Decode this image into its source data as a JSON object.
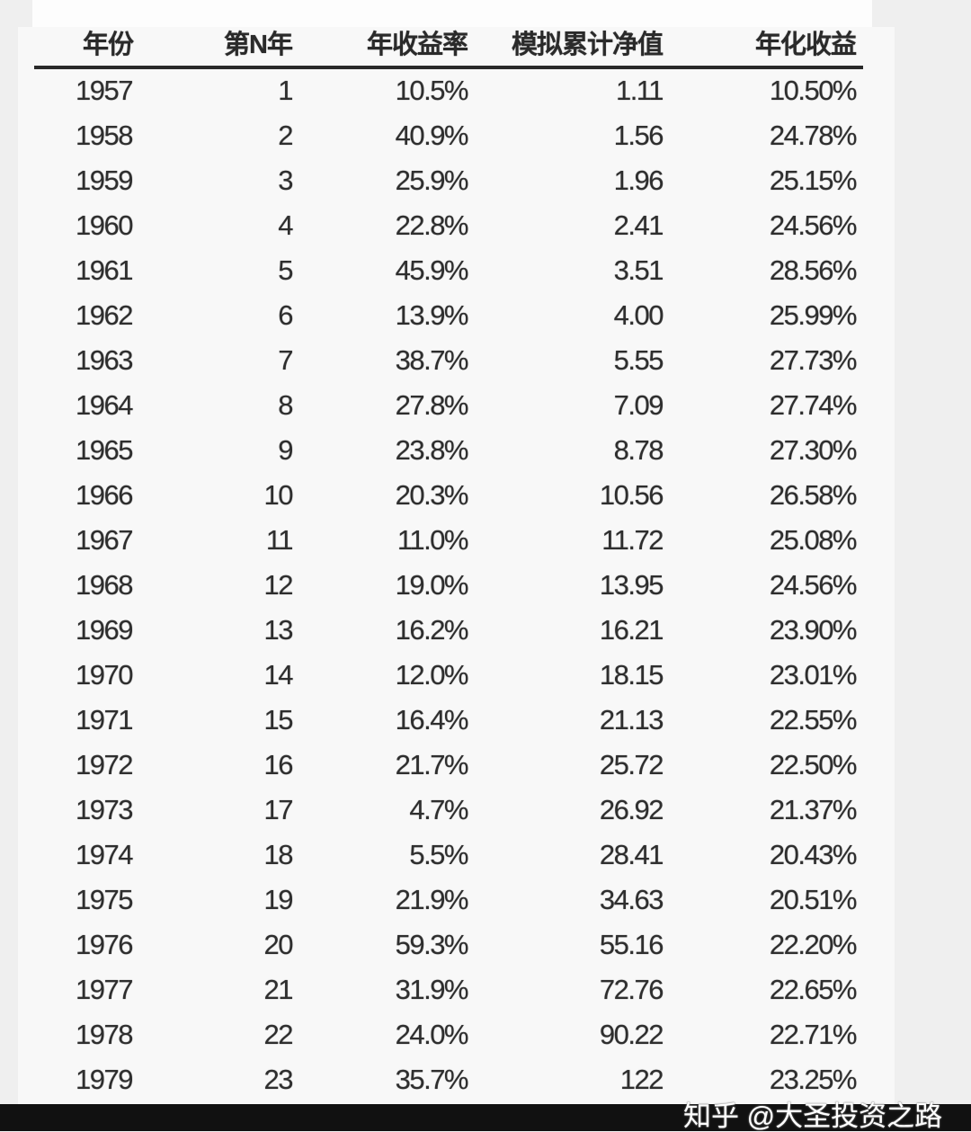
{
  "table": {
    "headers": [
      "年份",
      "第N年",
      "年收益率",
      "模拟累计净值",
      "年化收益"
    ],
    "rows": [
      [
        "1957",
        "1",
        "10.5%",
        "1.11",
        "10.50%"
      ],
      [
        "1958",
        "2",
        "40.9%",
        "1.56",
        "24.78%"
      ],
      [
        "1959",
        "3",
        "25.9%",
        "1.96",
        "25.15%"
      ],
      [
        "1960",
        "4",
        "22.8%",
        "2.41",
        "24.56%"
      ],
      [
        "1961",
        "5",
        "45.9%",
        "3.51",
        "28.56%"
      ],
      [
        "1962",
        "6",
        "13.9%",
        "4.00",
        "25.99%"
      ],
      [
        "1963",
        "7",
        "38.7%",
        "5.55",
        "27.73%"
      ],
      [
        "1964",
        "8",
        "27.8%",
        "7.09",
        "27.74%"
      ],
      [
        "1965",
        "9",
        "23.8%",
        "8.78",
        "27.30%"
      ],
      [
        "1966",
        "10",
        "20.3%",
        "10.56",
        "26.58%"
      ],
      [
        "1967",
        "11",
        "11.0%",
        "11.72",
        "25.08%"
      ],
      [
        "1968",
        "12",
        "19.0%",
        "13.95",
        "24.56%"
      ],
      [
        "1969",
        "13",
        "16.2%",
        "16.21",
        "23.90%"
      ],
      [
        "1970",
        "14",
        "12.0%",
        "18.15",
        "23.01%"
      ],
      [
        "1971",
        "15",
        "16.4%",
        "21.13",
        "22.55%"
      ],
      [
        "1972",
        "16",
        "21.7%",
        "25.72",
        "22.50%"
      ],
      [
        "1973",
        "17",
        "4.7%",
        "26.92",
        "21.37%"
      ],
      [
        "1974",
        "18",
        "5.5%",
        "28.41",
        "20.43%"
      ],
      [
        "1975",
        "19",
        "21.9%",
        "34.63",
        "20.51%"
      ],
      [
        "1976",
        "20",
        "59.3%",
        "55.16",
        "22.20%"
      ],
      [
        "1977",
        "21",
        "31.9%",
        "72.76",
        "22.65%"
      ],
      [
        "1978",
        "22",
        "24.0%",
        "90.22",
        "22.71%"
      ],
      [
        "1979",
        "23",
        "35.7%",
        "122",
        "23.25%"
      ]
    ]
  },
  "watermark": "知乎 @大圣投资之路"
}
